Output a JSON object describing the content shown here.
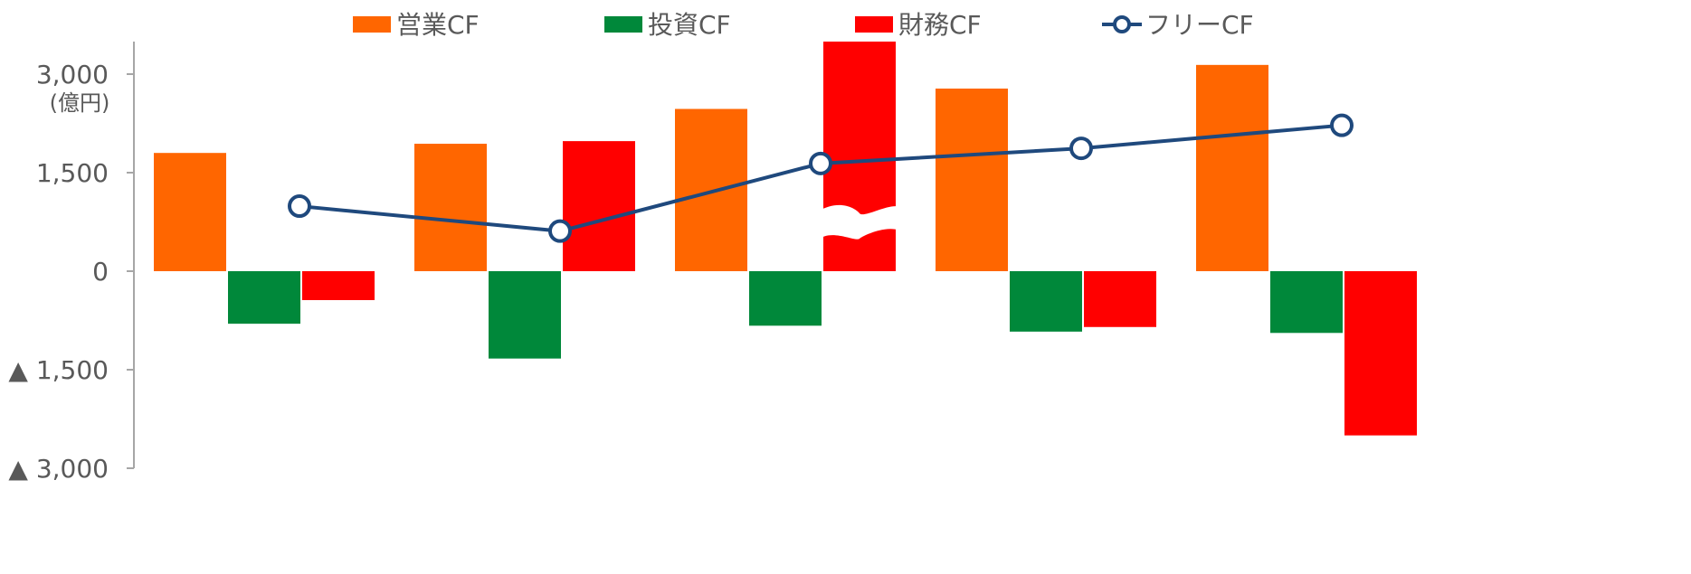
{
  "chart_data": {
    "type": "bar",
    "title": "",
    "xlabel": "",
    "ylabel": "",
    "unit": "(億円)",
    "categories": [
      "",
      "",
      "",
      "",
      ""
    ],
    "series": [
      {
        "name": "営業CF",
        "kind": "bar",
        "color": "#FF6600",
        "values": [
          1800,
          1940,
          2470,
          2780,
          3140
        ]
      },
      {
        "name": "投資CF",
        "kind": "bar",
        "color": "#00883A",
        "values": [
          -800,
          -1330,
          -830,
          -920,
          -940
        ]
      },
      {
        "name": "財務CF",
        "kind": "bar",
        "color": "#FF0000",
        "values": [
          -440,
          1980,
          3500,
          -850,
          -2500
        ],
        "break_at": 3500
      },
      {
        "name": "フリーCF",
        "kind": "line",
        "color": "#1F497D",
        "values": [
          990,
          610,
          1640,
          1870,
          2220
        ]
      }
    ],
    "y_ticks": [
      {
        "value": 3000,
        "label": "3,000"
      },
      {
        "value": 1500,
        "label": "1,500"
      },
      {
        "value": 0,
        "label": "0"
      },
      {
        "value": -1500,
        "label": "▲ 1,500"
      },
      {
        "value": -3000,
        "label": "▲ 3,000"
      }
    ],
    "ylim": [
      -3000,
      3500
    ],
    "grid": false,
    "legend_position": "top"
  }
}
